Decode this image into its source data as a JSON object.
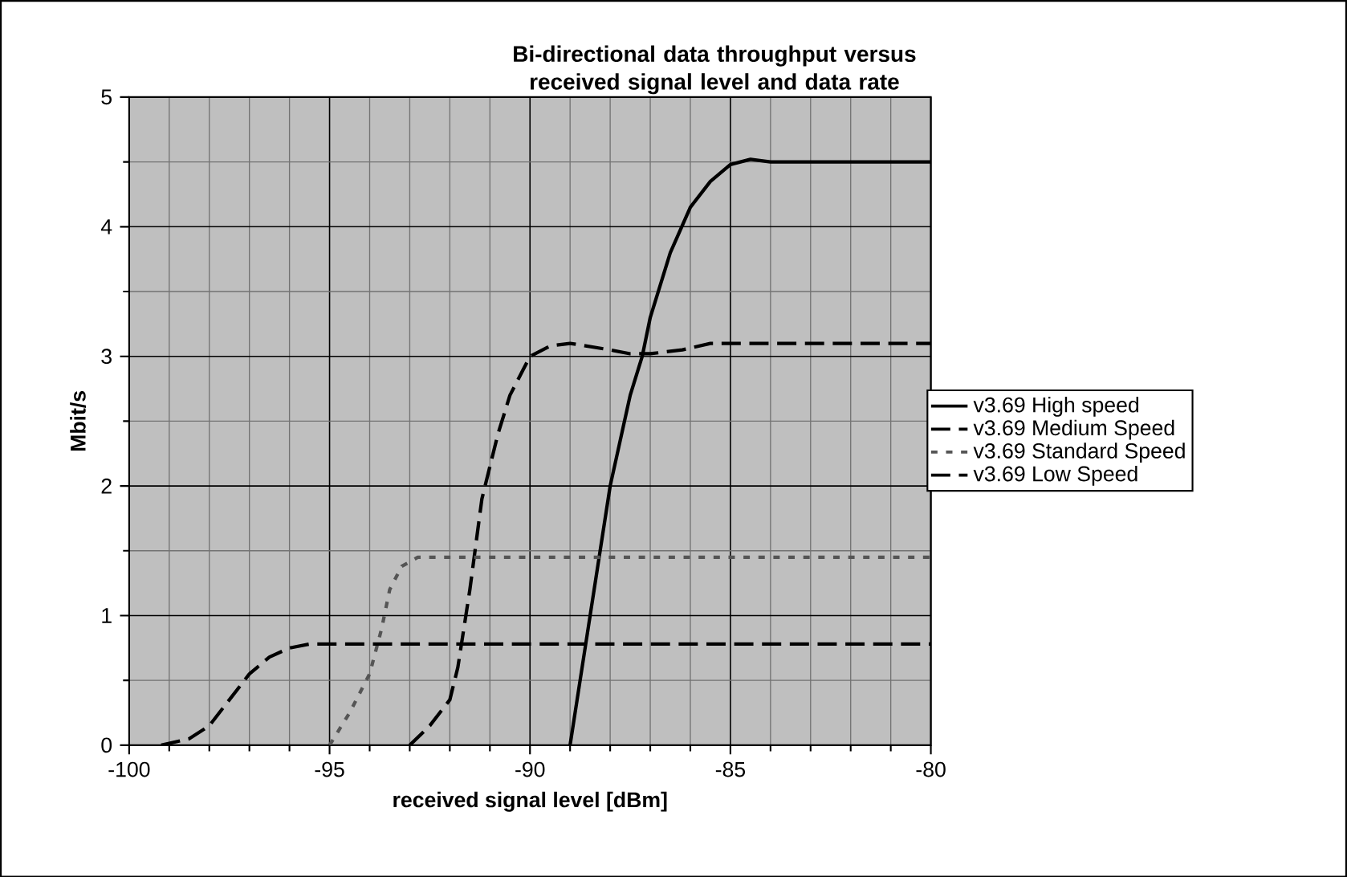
{
  "chart_data": {
    "type": "line",
    "title": "Bi-directional data throughput versus received signal level and data rate",
    "xlabel": "received signal level [dBm]",
    "ylabel": "Mbit/s",
    "xlim": [
      -100,
      -80
    ],
    "xticks": [
      -100,
      -95,
      -90,
      -85,
      -80
    ],
    "ylim": [
      0,
      5
    ],
    "yticks": [
      0,
      1,
      2,
      3,
      4,
      5
    ],
    "grid": true,
    "legend": "right",
    "marker": "none",
    "series": [
      {
        "name": "v3.69 High speed",
        "color": "#000000",
        "line_style": "solid",
        "x": [
          -89,
          -88.6,
          -88.3,
          -88,
          -87.5,
          -87.2,
          -87,
          -86.5,
          -86,
          -85.5,
          -85,
          -84.5,
          -84,
          -80
        ],
        "values": [
          0,
          0.8,
          1.4,
          2.0,
          2.7,
          3.0,
          3.3,
          3.8,
          4.15,
          4.35,
          4.48,
          4.52,
          4.5,
          4.5
        ]
      },
      {
        "name": "v3.69 Medium Speed",
        "color": "#000000",
        "line_style": "dashed",
        "x": [
          -93,
          -92.5,
          -92,
          -91.8,
          -91.5,
          -91.2,
          -90.8,
          -90.5,
          -90,
          -89.5,
          -89,
          -88,
          -87.5,
          -87,
          -86.2,
          -85.5,
          -80
        ],
        "values": [
          0,
          0.15,
          0.35,
          0.6,
          1.2,
          1.9,
          2.4,
          2.7,
          3.0,
          3.08,
          3.1,
          3.05,
          3.02,
          3.02,
          3.05,
          3.1,
          3.1
        ]
      },
      {
        "name": "v3.69 Standard Speed",
        "color": "#555555",
        "line_style": "dotted",
        "x": [
          -95,
          -94.5,
          -94,
          -93.7,
          -93.5,
          -93.2,
          -92.8,
          -80
        ],
        "values": [
          0,
          0.25,
          0.55,
          0.9,
          1.2,
          1.38,
          1.45,
          1.45
        ]
      },
      {
        "name": "v3.69 Low Speed",
        "color": "#000000",
        "line_style": "dashed",
        "x": [
          -99.2,
          -98.5,
          -98,
          -97.5,
          -97,
          -96.5,
          -96,
          -95.5,
          -95,
          -80
        ],
        "values": [
          0,
          0.05,
          0.15,
          0.35,
          0.55,
          0.68,
          0.75,
          0.78,
          0.78,
          0.78
        ]
      }
    ]
  }
}
